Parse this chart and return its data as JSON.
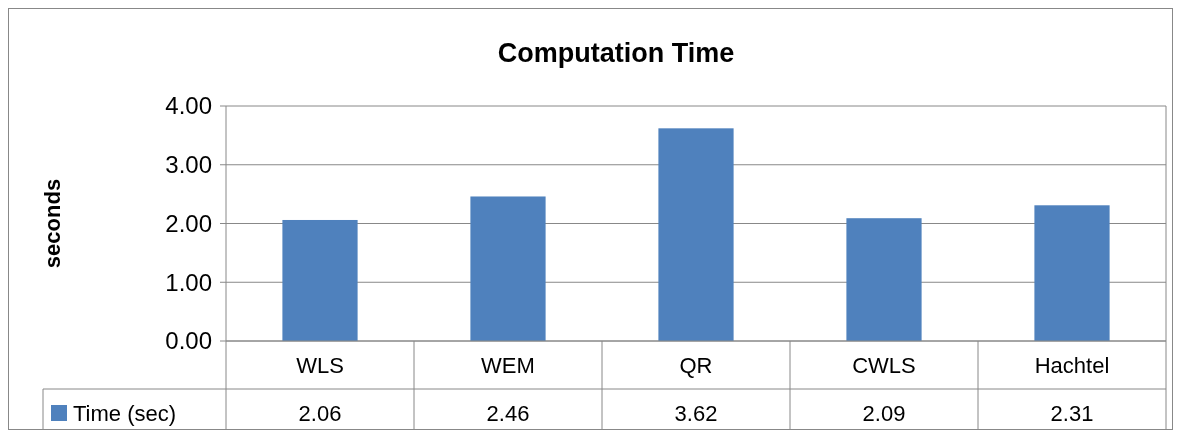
{
  "chart_data": {
    "type": "bar",
    "title": "Computation Time",
    "ylabel": "seconds",
    "categories": [
      "WLS",
      "WEM",
      "QR",
      "CWLS",
      "Hachtel"
    ],
    "series": [
      {
        "name": "Time (sec)",
        "color": "#4f81bd",
        "values": [
          2.06,
          2.46,
          3.62,
          2.09,
          2.31
        ]
      }
    ],
    "ylim": [
      0,
      4
    ],
    "yticks": [
      {
        "value": 0,
        "label": "0.00"
      },
      {
        "value": 1,
        "label": "1.00"
      },
      {
        "value": 2,
        "label": "2.00"
      },
      {
        "value": 3,
        "label": "3.00"
      },
      {
        "value": 4,
        "label": "4.00"
      }
    ],
    "grid": "y",
    "legend": "bottom",
    "data_labels": true
  }
}
